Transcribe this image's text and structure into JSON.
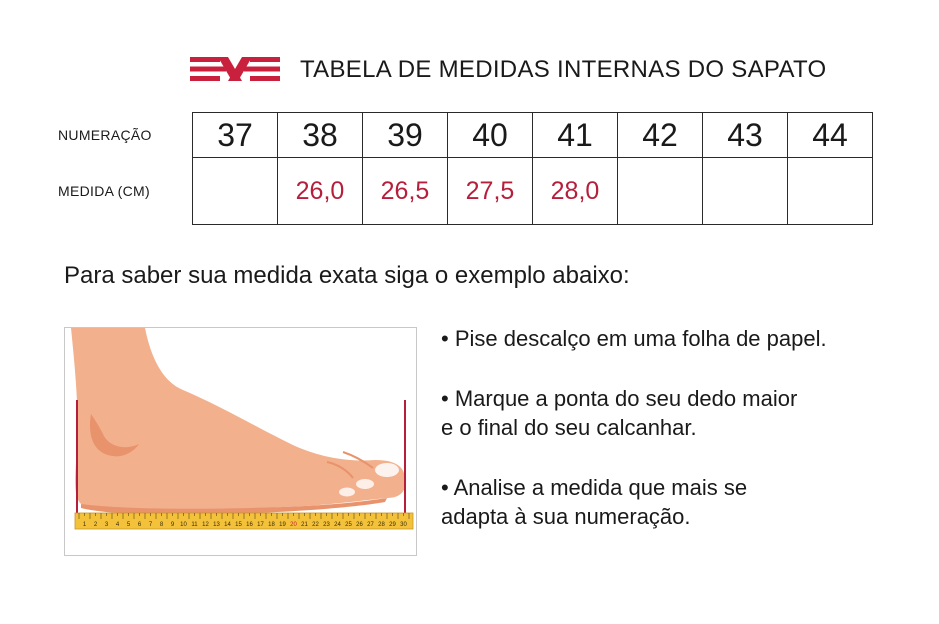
{
  "header": {
    "logo": "brand-stripes-x-logo",
    "title": "TABELA DE MEDIDAS INTERNAS DO SAPATO"
  },
  "table": {
    "row_labels": {
      "numeracao": "NUMERAÇÃO",
      "medida": "MEDIDA (CM)"
    },
    "sizes": [
      "37",
      "38",
      "39",
      "40",
      "41",
      "42",
      "43",
      "44"
    ],
    "measures": [
      "",
      "26,0",
      "26,5",
      "27,5",
      "28,0",
      "",
      "",
      ""
    ]
  },
  "instructions": {
    "title": "Para saber sua medida exata siga o exemplo abaixo:",
    "steps": [
      "• Pise descalço em uma folha de papel.",
      "• Marque a ponta do seu dedo maior\ne o final do seu calcanhar.",
      "• Analise a medida que mais se\nadapta à sua numeração."
    ]
  },
  "illustration": {
    "ruler_numbers": [
      "1",
      "2",
      "3",
      "4",
      "5",
      "6",
      "7",
      "8",
      "9",
      "10",
      "11",
      "12",
      "13",
      "14",
      "15",
      "16",
      "17",
      "18",
      "19",
      "20",
      "21",
      "22",
      "23",
      "24",
      "25",
      "26",
      "27",
      "28",
      "29",
      "30"
    ]
  },
  "colors": {
    "accent": "#b51f3c",
    "skin": "#f2b08c",
    "skin_shadow": "#e8936c",
    "ruler": "#f3c23a"
  }
}
